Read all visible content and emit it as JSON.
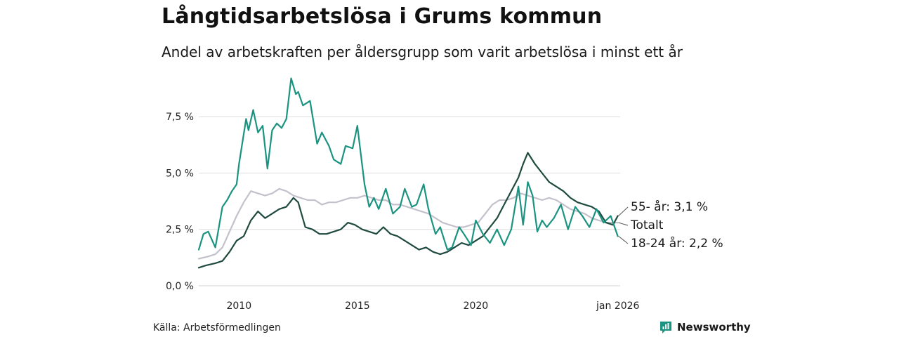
{
  "header": {
    "title": "Långtidsarbetslösa i Grums kommun",
    "subtitle": "Andel av arbetskraften per åldersgrupp som varit arbetslösa i minst ett år"
  },
  "footer": {
    "source": "Källa: Arbetsförmedlingen",
    "brand": "Newsworthy"
  },
  "colors": {
    "young": "#1a9480",
    "old": "#1f4a3f",
    "total": "#c4c0cc",
    "grid": "#dddddd",
    "brand": "#1a9480"
  },
  "chart_data": {
    "type": "line",
    "title": "Långtidsarbetslösa i Grums kommun",
    "xlabel": "",
    "ylabel": "",
    "xlim": [
      2008.3,
      2026.1
    ],
    "ylim": [
      0,
      9.5
    ],
    "grid": true,
    "y_ticks": [
      {
        "value": 0,
        "label": "0,0 %"
      },
      {
        "value": 2.5,
        "label": "2,5 %"
      },
      {
        "value": 5,
        "label": "5,0 %"
      },
      {
        "value": 7.5,
        "label": "7,5 %"
      }
    ],
    "x_ticks": [
      {
        "value": 2010,
        "label": "2010"
      },
      {
        "value": 2015,
        "label": "2015"
      },
      {
        "value": 2020,
        "label": "2020"
      },
      {
        "value": 2026.1,
        "label": "jan 2026"
      }
    ],
    "series": [
      {
        "name": "18-24 år",
        "end_label": "18-24 år: 2,2 %",
        "x": [
          2008.3,
          2008.5,
          2008.7,
          2009.0,
          2009.3,
          2009.5,
          2009.7,
          2009.9,
          2010.0,
          2010.3,
          2010.4,
          2010.6,
          2010.8,
          2011.0,
          2011.2,
          2011.4,
          2011.6,
          2011.8,
          2012.0,
          2012.2,
          2012.4,
          2012.5,
          2012.7,
          2013.0,
          2013.3,
          2013.5,
          2013.8,
          2014.0,
          2014.3,
          2014.5,
          2014.8,
          2015.0,
          2015.3,
          2015.5,
          2015.7,
          2015.9,
          2016.2,
          2016.5,
          2016.8,
          2017.0,
          2017.3,
          2017.5,
          2017.8,
          2018.0,
          2018.3,
          2018.5,
          2018.8,
          2019.0,
          2019.3,
          2019.5,
          2019.8,
          2020.0,
          2020.3,
          2020.6,
          2020.9,
          2021.2,
          2021.5,
          2021.8,
          2022.0,
          2022.2,
          2022.4,
          2022.6,
          2022.8,
          2023.0,
          2023.3,
          2023.6,
          2023.9,
          2024.2,
          2024.5,
          2024.8,
          2025.1,
          2025.4,
          2025.7,
          2026.0
        ],
        "values": [
          1.6,
          2.3,
          2.4,
          1.7,
          3.5,
          3.8,
          4.2,
          4.5,
          5.4,
          7.4,
          6.9,
          7.8,
          6.8,
          7.1,
          5.2,
          6.9,
          7.2,
          7.0,
          7.4,
          9.2,
          8.5,
          8.6,
          8.0,
          8.2,
          6.3,
          6.8,
          6.2,
          5.6,
          5.4,
          6.2,
          6.1,
          7.1,
          4.5,
          3.5,
          3.9,
          3.4,
          4.3,
          3.2,
          3.5,
          4.3,
          3.5,
          3.6,
          4.5,
          3.4,
          2.3,
          2.6,
          1.6,
          1.7,
          2.6,
          2.3,
          1.8,
          2.9,
          2.3,
          1.9,
          2.5,
          1.8,
          2.5,
          4.4,
          2.7,
          4.6,
          4.0,
          2.4,
          2.9,
          2.6,
          3.0,
          3.6,
          2.5,
          3.5,
          3.1,
          2.6,
          3.4,
          2.8,
          3.1,
          2.2
        ]
      },
      {
        "name": "55- år",
        "end_label": "55- år: 3,1 %",
        "x": [
          2008.3,
          2008.6,
          2009.0,
          2009.3,
          2009.6,
          2009.9,
          2010.2,
          2010.5,
          2010.8,
          2011.1,
          2011.4,
          2011.7,
          2012.0,
          2012.3,
          2012.5,
          2012.8,
          2013.1,
          2013.4,
          2013.7,
          2014.0,
          2014.3,
          2014.6,
          2014.9,
          2015.2,
          2015.5,
          2015.8,
          2016.1,
          2016.4,
          2016.7,
          2017.0,
          2017.3,
          2017.6,
          2017.9,
          2018.2,
          2018.5,
          2018.8,
          2019.1,
          2019.4,
          2019.7,
          2020.0,
          2020.3,
          2020.6,
          2020.9,
          2021.2,
          2021.5,
          2021.8,
          2022.0,
          2022.2,
          2022.5,
          2022.8,
          2023.1,
          2023.4,
          2023.7,
          2024.0,
          2024.3,
          2024.6,
          2024.9,
          2025.2,
          2025.5,
          2025.8,
          2026.0
        ],
        "values": [
          0.8,
          0.9,
          1.0,
          1.1,
          1.5,
          2.0,
          2.2,
          2.9,
          3.3,
          3.0,
          3.2,
          3.4,
          3.5,
          3.9,
          3.7,
          2.6,
          2.5,
          2.3,
          2.3,
          2.4,
          2.5,
          2.8,
          2.7,
          2.5,
          2.4,
          2.3,
          2.6,
          2.3,
          2.2,
          2.0,
          1.8,
          1.6,
          1.7,
          1.5,
          1.4,
          1.5,
          1.7,
          1.9,
          1.8,
          2.0,
          2.2,
          2.6,
          3.0,
          3.6,
          4.2,
          4.8,
          5.4,
          5.9,
          5.4,
          5.0,
          4.6,
          4.4,
          4.2,
          3.9,
          3.7,
          3.6,
          3.5,
          3.3,
          2.8,
          2.7,
          3.1
        ]
      },
      {
        "name": "Totalt",
        "end_label": "Totalt",
        "x": [
          2008.3,
          2008.7,
          2009.0,
          2009.3,
          2009.6,
          2009.9,
          2010.2,
          2010.5,
          2010.8,
          2011.1,
          2011.4,
          2011.7,
          2012.0,
          2012.3,
          2012.6,
          2012.9,
          2013.2,
          2013.5,
          2013.8,
          2014.1,
          2014.4,
          2014.7,
          2015.0,
          2015.3,
          2015.6,
          2015.9,
          2016.2,
          2016.5,
          2016.8,
          2017.1,
          2017.4,
          2017.7,
          2018.0,
          2018.3,
          2018.6,
          2018.9,
          2019.2,
          2019.5,
          2019.8,
          2020.1,
          2020.4,
          2020.7,
          2021.0,
          2021.3,
          2021.6,
          2021.9,
          2022.2,
          2022.5,
          2022.8,
          2023.1,
          2023.4,
          2023.7,
          2024.0,
          2024.3,
          2024.6,
          2024.9,
          2025.2,
          2025.5,
          2025.8,
          2026.0
        ],
        "values": [
          1.2,
          1.3,
          1.4,
          1.7,
          2.4,
          3.1,
          3.7,
          4.2,
          4.1,
          4.0,
          4.1,
          4.3,
          4.2,
          4.0,
          3.9,
          3.8,
          3.8,
          3.6,
          3.7,
          3.7,
          3.8,
          3.9,
          3.9,
          4.0,
          3.9,
          3.8,
          3.8,
          3.6,
          3.6,
          3.5,
          3.4,
          3.3,
          3.2,
          3.0,
          2.8,
          2.7,
          2.6,
          2.6,
          2.7,
          2.8,
          3.2,
          3.6,
          3.8,
          3.8,
          3.9,
          4.1,
          4.0,
          3.9,
          3.8,
          3.9,
          3.8,
          3.6,
          3.4,
          3.3,
          3.2,
          3.0,
          2.9,
          2.8,
          2.8,
          2.8
        ]
      }
    ]
  }
}
